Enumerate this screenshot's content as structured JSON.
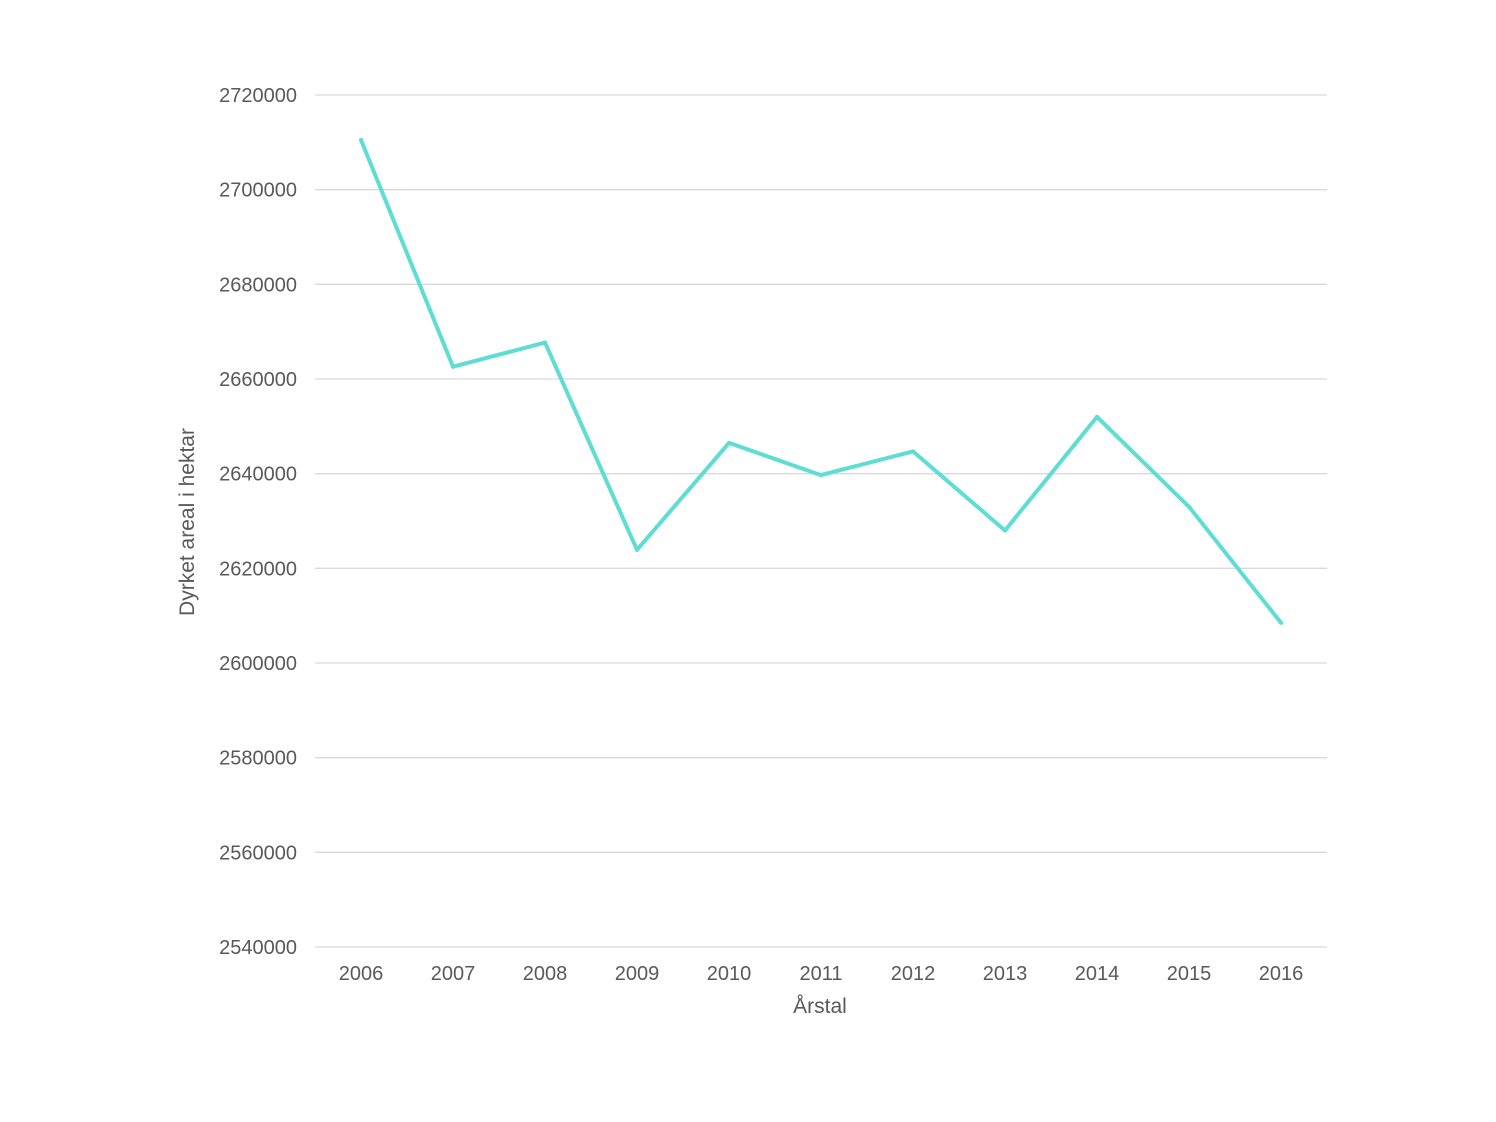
{
  "chart_data": {
    "type": "line",
    "title": "",
    "xlabel": "Årstal",
    "ylabel": "Dyrket areal i hektar",
    "categories": [
      "2006",
      "2007",
      "2008",
      "2009",
      "2010",
      "2011",
      "2012",
      "2013",
      "2014",
      "2015",
      "2016"
    ],
    "series": [
      {
        "values": [
          2710500,
          2662600,
          2667700,
          2623900,
          2646500,
          2639700,
          2644700,
          2628000,
          2652000,
          2633000,
          2608500
        ],
        "color": "#5dddd3"
      }
    ],
    "ylim": [
      2540000,
      2720000
    ],
    "yticks": [
      2540000,
      2560000,
      2580000,
      2600000,
      2620000,
      2640000,
      2660000,
      2680000,
      2700000,
      2720000
    ],
    "grid": true,
    "legend": "none"
  }
}
